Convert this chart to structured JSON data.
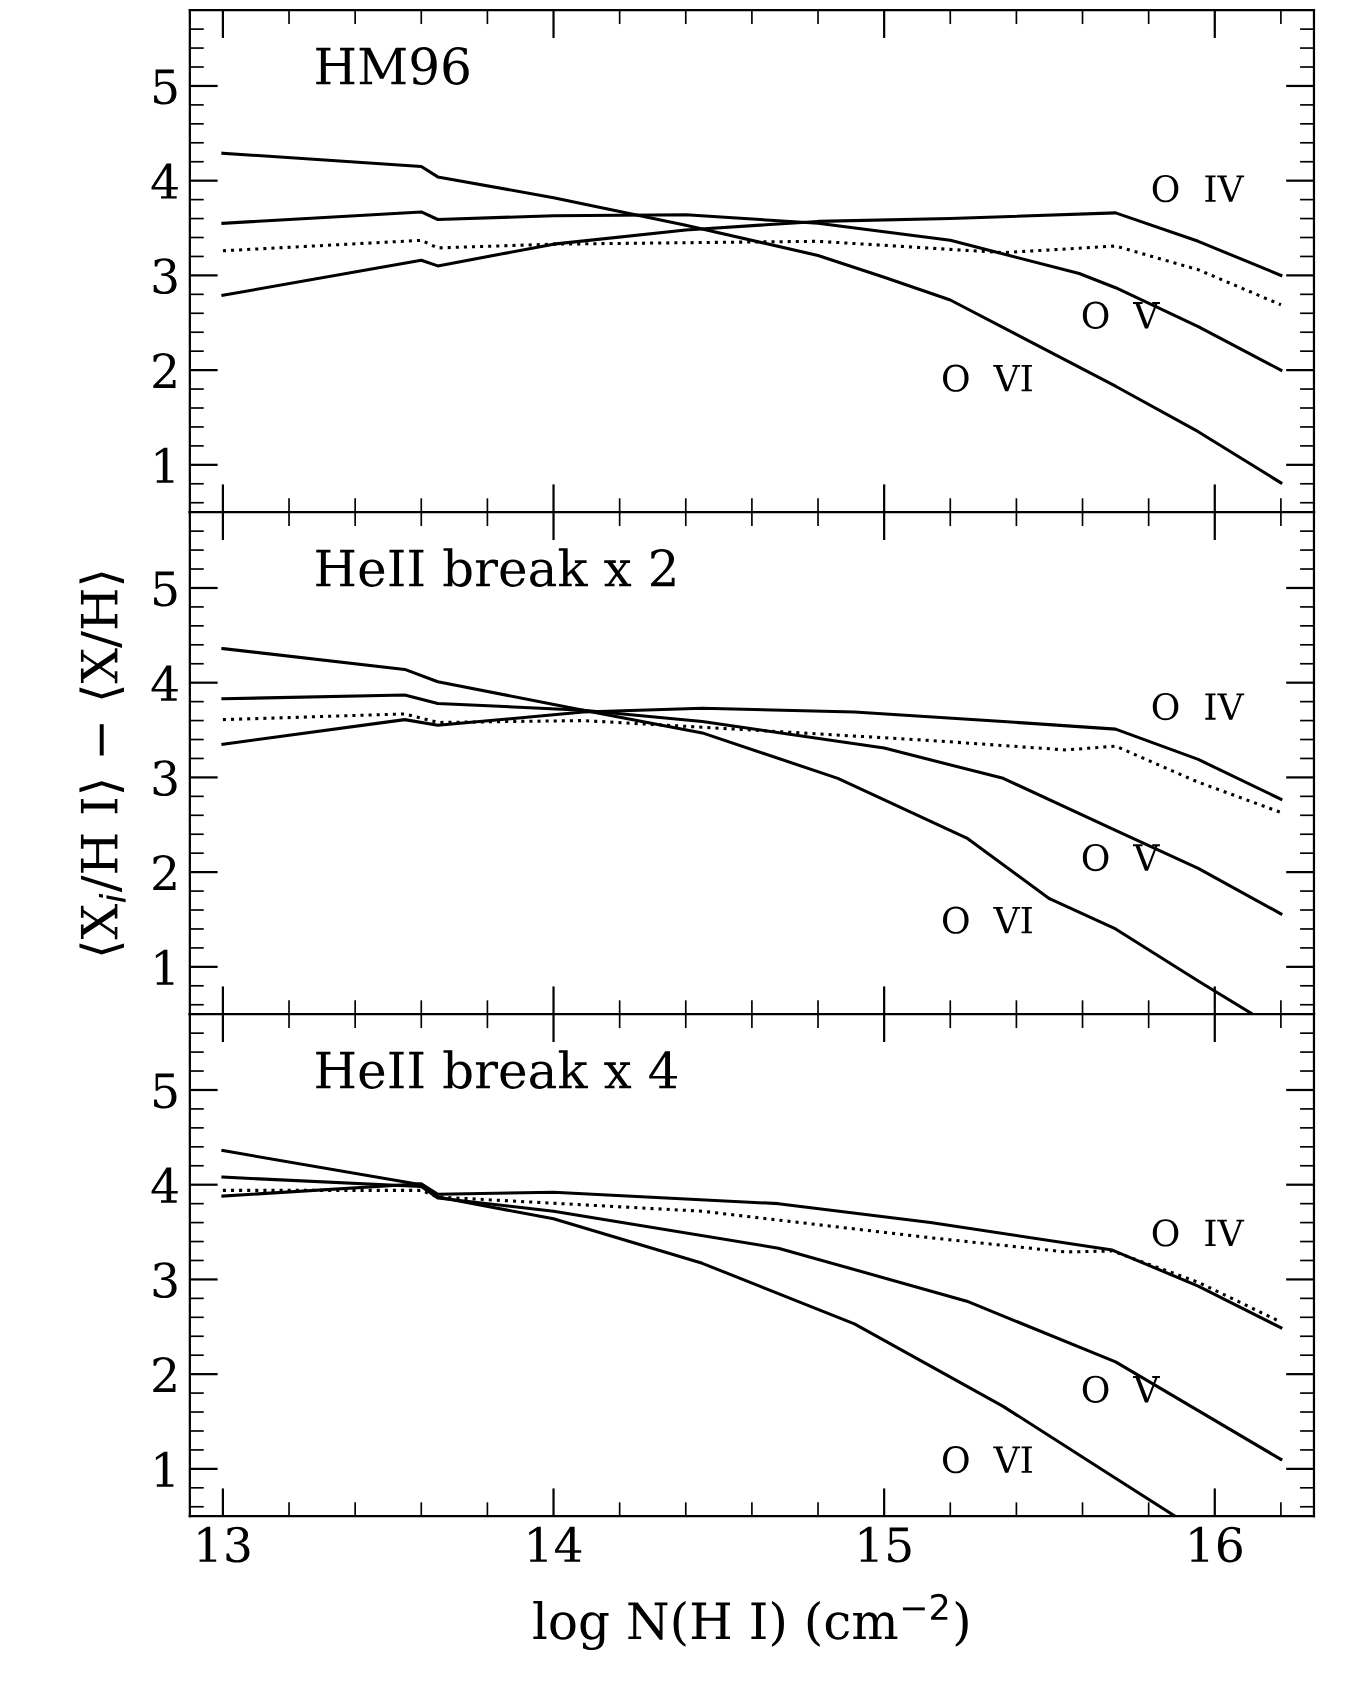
{
  "chart_data": [
    {
      "type": "line",
      "title": "HM96",
      "xlim": [
        12.9,
        16.3
      ],
      "ylim": [
        0.5,
        5.8
      ],
      "xticks": [
        13,
        14,
        15,
        16
      ],
      "yticks": [
        1,
        2,
        3,
        4,
        5
      ],
      "tick_labels": "y",
      "grid": false,
      "series": [
        {
          "name": "O  VI",
          "color": "#000000",
          "line_style": "solid",
          "x": [
            13.0,
            13.6,
            13.65,
            14.0,
            14.4,
            14.8,
            15.0,
            15.2,
            15.7,
            15.95,
            16.2
          ],
          "values": [
            4.29,
            4.15,
            4.04,
            3.82,
            3.53,
            3.21,
            2.98,
            2.74,
            1.83,
            1.35,
            0.81
          ]
        },
        {
          "name": "O  V",
          "color": "#000000",
          "line_style": "solid",
          "x": [
            13.0,
            13.6,
            13.65,
            14.0,
            14.4,
            14.8,
            15.2,
            15.59,
            15.7,
            15.95,
            16.2
          ],
          "values": [
            3.55,
            3.67,
            3.59,
            3.63,
            3.64,
            3.55,
            3.37,
            3.02,
            2.87,
            2.46,
            2.0
          ]
        },
        {
          "name": "O  IV",
          "color": "#000000",
          "line_style": "solid",
          "x": [
            13.0,
            13.6,
            13.65,
            14.0,
            14.4,
            14.8,
            15.2,
            15.7,
            15.95,
            16.2
          ],
          "values": [
            2.79,
            3.16,
            3.1,
            3.33,
            3.48,
            3.57,
            3.6,
            3.66,
            3.36,
            3.0
          ]
        },
        {
          "color": "#000000",
          "line_style": "dotted",
          "x": [
            13.0,
            13.6,
            13.65,
            14.0,
            14.8,
            15.36,
            15.7,
            15.95,
            16.2
          ],
          "values": [
            3.26,
            3.37,
            3.29,
            3.33,
            3.36,
            3.24,
            3.31,
            3.06,
            2.69
          ]
        }
      ]
    },
    {
      "type": "line",
      "title": "HeII break x 2",
      "ylabel": "⟨X$_{i}$/H I⟩ − ⟨X/H⟩",
      "xlim": [
        12.9,
        16.3
      ],
      "ylim": [
        0.5,
        5.8
      ],
      "xticks": [
        13,
        14,
        15,
        16
      ],
      "yticks": [
        1,
        2,
        3,
        4,
        5
      ],
      "tick_labels": "y",
      "grid": false,
      "series": [
        {
          "name": "O  VI",
          "color": "#000000",
          "line_style": "solid",
          "x": [
            13.0,
            13.55,
            13.65,
            14.09,
            14.45,
            14.86,
            15.25,
            15.5,
            15.7,
            15.95,
            16.11
          ],
          "values": [
            4.36,
            4.14,
            4.01,
            3.71,
            3.47,
            2.99,
            2.36,
            1.72,
            1.4,
            0.85,
            0.51
          ]
        },
        {
          "name": "O  V",
          "color": "#000000",
          "line_style": "solid",
          "x": [
            13.0,
            13.55,
            13.65,
            14.09,
            14.45,
            15.0,
            15.36,
            15.7,
            15.95,
            16.2
          ],
          "values": [
            3.83,
            3.87,
            3.78,
            3.71,
            3.59,
            3.31,
            2.99,
            2.44,
            2.04,
            1.56
          ]
        },
        {
          "name": "O  IV",
          "color": "#000000",
          "line_style": "solid",
          "x": [
            13.0,
            13.55,
            13.65,
            14.09,
            14.45,
            14.91,
            15.36,
            15.7,
            15.95,
            16.2
          ],
          "values": [
            3.35,
            3.61,
            3.55,
            3.69,
            3.73,
            3.69,
            3.59,
            3.51,
            3.19,
            2.77
          ]
        },
        {
          "color": "#000000",
          "line_style": "dotted",
          "x": [
            13.0,
            13.55,
            13.65,
            14.09,
            14.55,
            15.14,
            15.55,
            15.7,
            15.95,
            16.2
          ],
          "values": [
            3.61,
            3.67,
            3.58,
            3.6,
            3.51,
            3.39,
            3.29,
            3.33,
            2.95,
            2.63
          ]
        }
      ]
    },
    {
      "type": "line",
      "title": "HeII break x 4",
      "xlabel": "log N(H I) (cm$^{−2}$)",
      "xlim": [
        12.9,
        16.3
      ],
      "ylim": [
        0.5,
        5.8
      ],
      "xticks": [
        13,
        14,
        15,
        16
      ],
      "yticks": [
        1,
        2,
        3,
        4,
        5
      ],
      "grid": false,
      "series": [
        {
          "name": "O  VI",
          "color": "#000000",
          "line_style": "solid",
          "x": [
            13.0,
            13.6,
            13.65,
            14.0,
            14.45,
            14.91,
            15.36,
            15.7,
            15.88
          ],
          "values": [
            4.36,
            4.0,
            3.87,
            3.64,
            3.17,
            2.53,
            1.66,
            0.9,
            0.5
          ]
        },
        {
          "name": "O  V",
          "color": "#000000",
          "line_style": "solid",
          "x": [
            13.0,
            13.6,
            13.65,
            14.0,
            14.68,
            15.25,
            15.7,
            16.2
          ],
          "values": [
            4.08,
            3.98,
            3.86,
            3.72,
            3.33,
            2.77,
            2.13,
            1.1
          ]
        },
        {
          "name": "O  IV",
          "color": "#000000",
          "line_style": "solid",
          "x": [
            13.0,
            13.6,
            13.65,
            14.0,
            14.68,
            15.14,
            15.69,
            15.95,
            16.2
          ],
          "values": [
            3.88,
            4.01,
            3.9,
            3.92,
            3.8,
            3.6,
            3.31,
            2.93,
            2.49
          ]
        },
        {
          "color": "#000000",
          "line_style": "dotted",
          "x": [
            13.0,
            13.6,
            13.65,
            14.45,
            15.14,
            15.55,
            15.69,
            15.95,
            16.2
          ],
          "values": [
            3.94,
            3.94,
            3.87,
            3.72,
            3.44,
            3.29,
            3.3,
            2.97,
            2.55
          ]
        }
      ]
    }
  ]
}
